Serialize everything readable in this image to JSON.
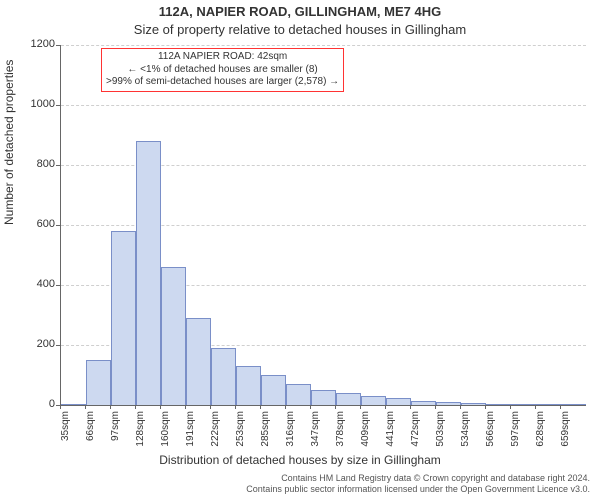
{
  "title": "112A, NAPIER ROAD, GILLINGHAM, ME7 4HG",
  "subtitle": "Size of property relative to detached houses in Gillingham",
  "chart": {
    "type": "histogram",
    "ylabel": "Number of detached properties",
    "xlabel": "Distribution of detached houses by size in Gillingham",
    "ylim": [
      0,
      1200
    ],
    "ytick_step": 200,
    "yticks": [
      0,
      200,
      400,
      600,
      800,
      1000,
      1200
    ],
    "xticks": [
      "35sqm",
      "66sqm",
      "97sqm",
      "128sqm",
      "160sqm",
      "191sqm",
      "222sqm",
      "253sqm",
      "285sqm",
      "316sqm",
      "347sqm",
      "378sqm",
      "409sqm",
      "441sqm",
      "472sqm",
      "503sqm",
      "534sqm",
      "566sqm",
      "597sqm",
      "628sqm",
      "659sqm"
    ],
    "values": [
      0,
      150,
      580,
      880,
      460,
      290,
      190,
      130,
      100,
      70,
      50,
      40,
      30,
      25,
      15,
      10,
      8,
      5,
      3,
      2,
      2
    ],
    "bar_fill": "#cdd9f0",
    "bar_stroke": "#7a8fc8",
    "bar_width_ratio": 1.0,
    "background_color": "#ffffff",
    "grid_color": "#cfcfcf",
    "axis_color": "#666666",
    "tick_fontsize": 10,
    "label_fontsize": 12,
    "title_fontsize": 13
  },
  "annotation": {
    "line1": "112A NAPIER ROAD: 42sqm",
    "line2": "← <1% of detached houses are smaller (8)",
    "line3": ">99% of semi-detached houses are larger (2,578) →",
    "border_color": "#ff3333",
    "fontsize": 10
  },
  "footer": {
    "line1": "Contains HM Land Registry data © Crown copyright and database right 2024.",
    "line2": "Contains public sector information licensed under the Open Government Licence v3.0.",
    "fontsize": 9,
    "color": "#555555"
  }
}
